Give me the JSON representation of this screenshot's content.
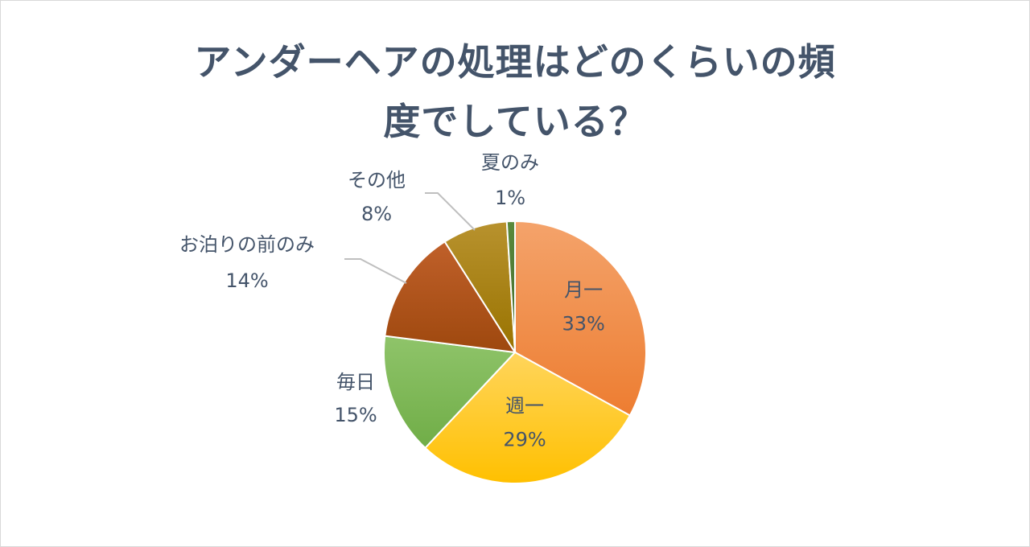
{
  "chart_data": {
    "type": "pie",
    "title_lines": [
      "アンダーヘアの処理はどのくらいの頻",
      "度でしている？"
    ],
    "start_angle_deg": 0,
    "direction": "clockwise",
    "slices": [
      {
        "label": "月一",
        "value": 33,
        "value_label": "33%",
        "color": "#ed7d31",
        "color_light": "#f4a36b",
        "label_inside": true
      },
      {
        "label": "週一",
        "value": 29,
        "value_label": "29%",
        "color": "#ffc000",
        "color_light": "#ffd55c",
        "label_inside": true
      },
      {
        "label": "毎日",
        "value": 15,
        "value_label": "15%",
        "color": "#70ad47",
        "color_light": "#8fc46a",
        "label_inside": false
      },
      {
        "label": "お泊りの前のみ",
        "value": 14,
        "value_label": "14%",
        "color": "#9e480e",
        "color_light": "#c0602a",
        "label_inside": false
      },
      {
        "label": "その他",
        "value": 8,
        "value_label": "8%",
        "color": "#997300",
        "color_light": "#b8922e",
        "label_inside": false
      },
      {
        "label": "夏のみ",
        "value": 1,
        "value_label": "1%",
        "color": "#43682b",
        "color_light": "#5b8a3c",
        "label_inside": false
      }
    ],
    "legend": "none",
    "data_labels": "category-and-percent"
  }
}
